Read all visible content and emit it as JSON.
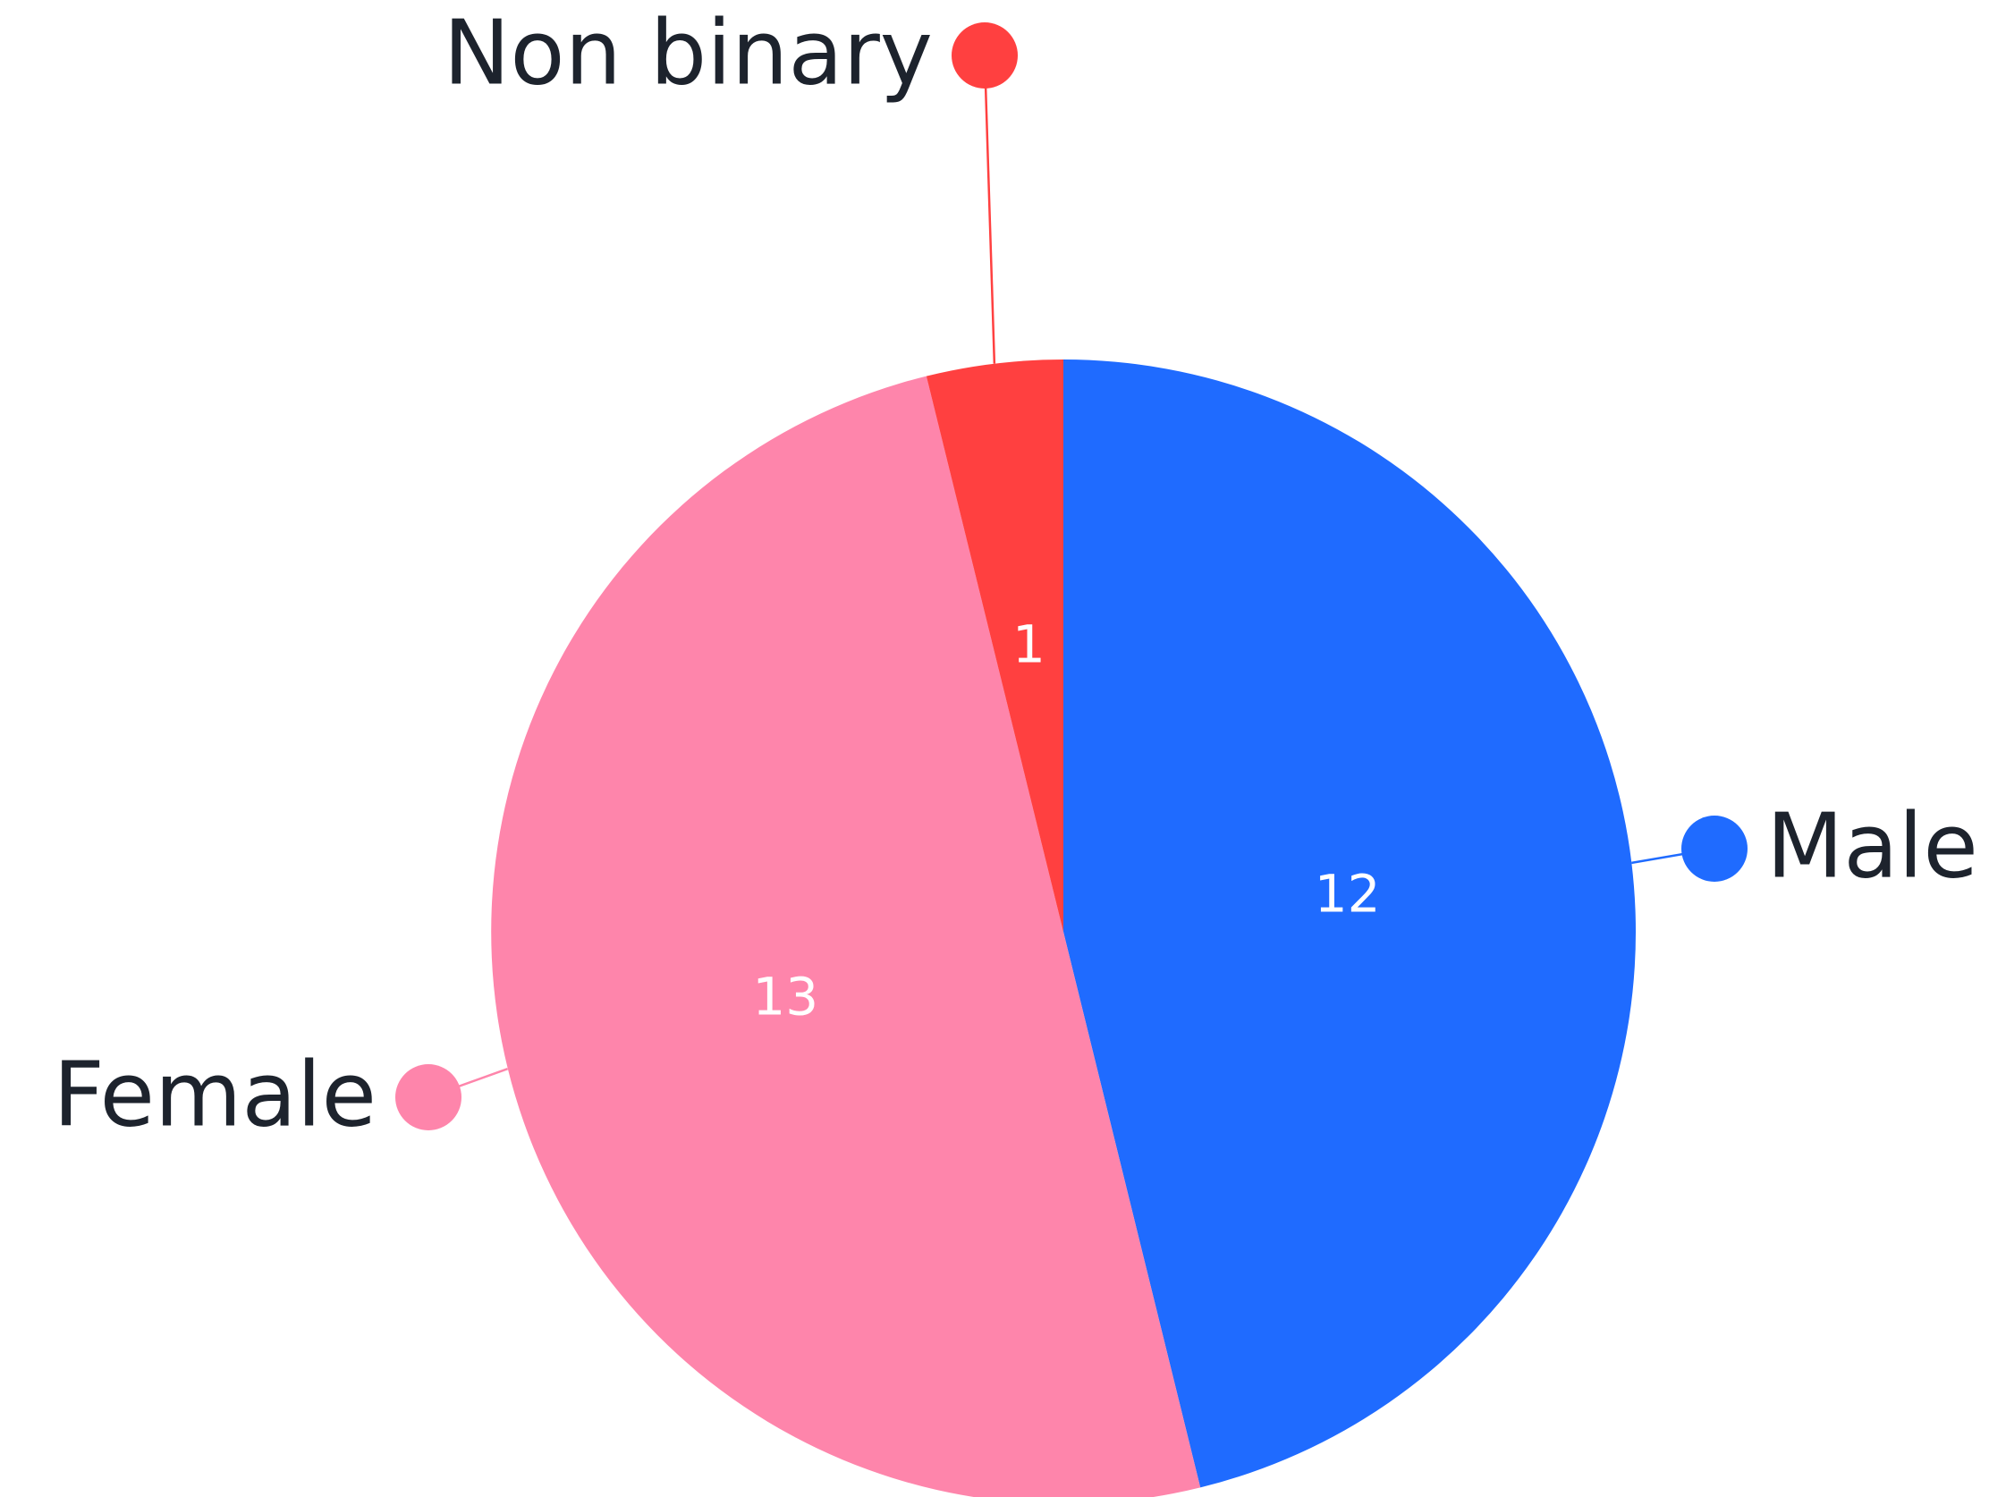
{
  "chart_data": {
    "type": "pie",
    "categories": [
      "Male",
      "Female",
      "Non binary"
    ],
    "values": [
      12,
      13,
      1
    ],
    "colors": [
      "#1f6bff",
      "#fe85ab",
      "#ff4040"
    ]
  }
}
